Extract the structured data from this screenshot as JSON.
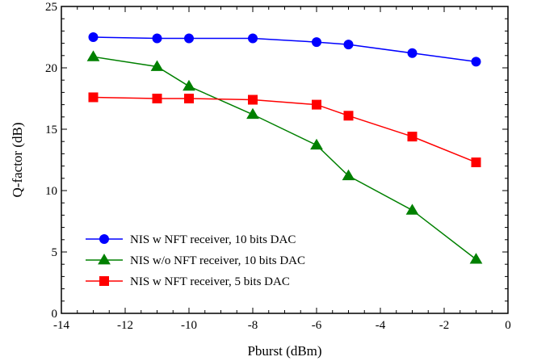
{
  "chart_data": {
    "type": "line",
    "xlabel": "Pburst (dBm)",
    "ylabel": "Q-factor (dB)",
    "xlim": [
      -14,
      0
    ],
    "ylim": [
      0,
      25
    ],
    "xticks": [
      -14,
      -12,
      -10,
      -8,
      -6,
      -4,
      -2,
      0
    ],
    "yticks": [
      0,
      5,
      10,
      15,
      20,
      25
    ],
    "grid": false,
    "legend_position": "bottom-left",
    "series": [
      {
        "name": "NIS w NFT receiver, 10 bits DAC",
        "color": "#0000ff",
        "marker": "circle",
        "x": [
          -13,
          -11,
          -10,
          -8,
          -6,
          -5,
          -3,
          -1
        ],
        "y": [
          22.5,
          22.4,
          22.4,
          22.4,
          22.1,
          21.9,
          21.2,
          20.5
        ]
      },
      {
        "name": "NIS w/o NFT receiver, 10 bits DAC",
        "color": "#008000",
        "marker": "triangle",
        "x": [
          -13,
          -11,
          -10,
          -8,
          -6,
          -5,
          -3,
          -1
        ],
        "y": [
          20.9,
          20.1,
          18.5,
          16.2,
          13.7,
          11.2,
          8.4,
          4.4
        ]
      },
      {
        "name": "NIS w NFT receiver, 5 bits DAC",
        "color": "#ff0000",
        "marker": "square",
        "x": [
          -13,
          -11,
          -10,
          -8,
          -6,
          -5,
          -3,
          -1
        ],
        "y": [
          17.6,
          17.5,
          17.5,
          17.4,
          17.0,
          16.1,
          14.4,
          12.3
        ]
      }
    ]
  }
}
